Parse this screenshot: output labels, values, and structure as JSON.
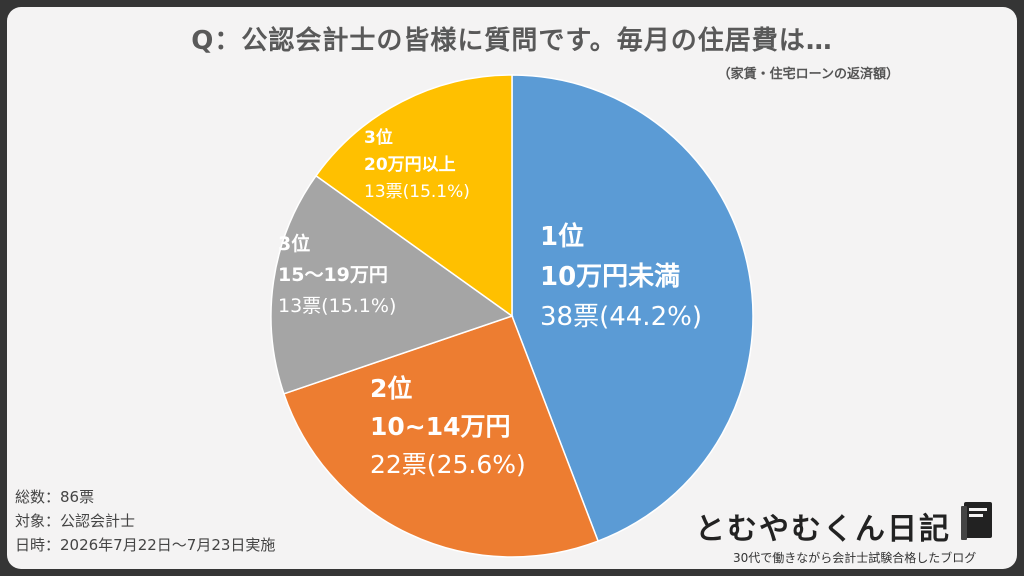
{
  "title": "Q：公認会計士の皆様に質問です。毎月の住居費は…",
  "subtitle": "（家賃・住宅ローンの返済額）",
  "colors": {
    "background_frame": "#353535",
    "panel": "#f4f3f3",
    "blue": "#5b9bd5",
    "orange": "#ed7d31",
    "gray": "#a5a5a5",
    "yellow": "#ffc000"
  },
  "chart_data": {
    "type": "pie",
    "total_label": "86票",
    "slices": [
      {
        "rank": "1位",
        "category": "10万円未満",
        "votes_label": "38票(44.2%)",
        "votes": 38,
        "percent": 44.2,
        "color": "#5b9bd5"
      },
      {
        "rank": "2位",
        "category": "10~14万円",
        "votes_label": "22票(25.6%)",
        "votes": 22,
        "percent": 25.6,
        "color": "#ed7d31"
      },
      {
        "rank": "3位",
        "category": "15～19万円",
        "votes_label": "13票(15.1%)",
        "votes": 13,
        "percent": 15.1,
        "color": "#a5a5a5"
      },
      {
        "rank": "3位",
        "category": "20万円以上",
        "votes_label": "13票(15.1%)",
        "votes": 13,
        "percent": 15.1,
        "color": "#ffc000"
      }
    ]
  },
  "meta": {
    "total": "総数：86票",
    "target": "対象：公認会計士",
    "date": "日時：2026年7月22日～7月23日実施"
  },
  "brand": {
    "name": "とむやむくん日記",
    "tagline": "30代で働きながら会計士試験合格したブログ",
    "icon": "book-icon"
  }
}
